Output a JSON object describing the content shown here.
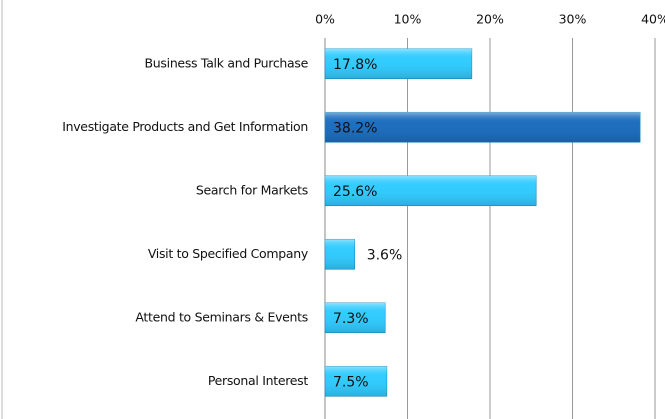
{
  "chart_data": {
    "type": "barh",
    "categories": [
      "Business Talk and Purchase",
      "Investigate Products and Get Information",
      "Search for Markets",
      "Visit to Specified Company",
      "Attend to Seminars & Events",
      "Personal Interest"
    ],
    "values": [
      17.8,
      38.2,
      25.6,
      3.6,
      7.3,
      7.5
    ],
    "value_labels": [
      "17.8%",
      "38.2%",
      "25.6%",
      "3.6%",
      "7.3%",
      "7.5%"
    ],
    "colors": [
      "#33ccff",
      "#1f6fc0",
      "#33ccff",
      "#33ccff",
      "#33ccff",
      "#33ccff"
    ],
    "xlim": [
      0,
      40
    ],
    "xticks": [
      {
        "value": 0,
        "label": "0%"
      },
      {
        "value": 10,
        "label": "10%"
      },
      {
        "value": 20,
        "label": "20%"
      },
      {
        "value": 30,
        "label": "30%"
      },
      {
        "value": 40,
        "label": "40%"
      }
    ],
    "grid": true
  }
}
